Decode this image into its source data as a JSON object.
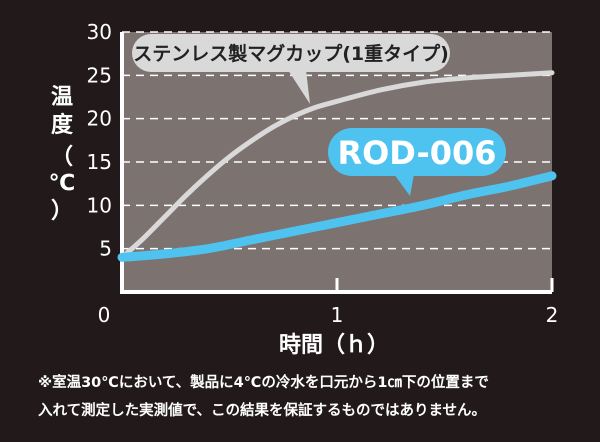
{
  "chart_data": {
    "type": "line",
    "ylabel_chars": [
      "温",
      "度",
      "（",
      "℃",
      "）"
    ],
    "xlabel": "時間（ｈ）",
    "ylim": [
      0,
      30
    ],
    "xlim": [
      0,
      2
    ],
    "y_ticks": [
      "0",
      "5",
      "10",
      "15",
      "20",
      "25",
      "30"
    ],
    "x_ticks": [
      "1",
      "2"
    ],
    "grid": true,
    "series": [
      {
        "name": "ステンレス製マグカップ(1重タイプ)",
        "color": "#d9d9d9",
        "x": [
          0,
          0.1,
          0.2,
          0.3,
          0.4,
          0.5,
          0.6,
          0.7,
          0.8,
          0.9,
          1.0,
          1.2,
          1.4,
          1.6,
          1.8,
          2.0
        ],
        "y": [
          4,
          6.2,
          8.7,
          11.2,
          13.5,
          15.6,
          17.4,
          19.0,
          20.3,
          21.3,
          22.0,
          23.3,
          24.2,
          24.7,
          25.0,
          25.3
        ]
      },
      {
        "name": "ROD-006",
        "color": "#4fc3f0",
        "x": [
          0,
          0.2,
          0.4,
          0.6,
          0.8,
          1.0,
          1.2,
          1.4,
          1.6,
          1.8,
          2.0
        ],
        "y": [
          4,
          4.4,
          5.0,
          6.0,
          7.0,
          8.0,
          9.0,
          10.0,
          11.2,
          12.2,
          13.4
        ]
      }
    ]
  },
  "colors": {
    "background": "#221a1a",
    "plot_area": "#7c7371",
    "grid": "#ffffff",
    "curve_stainless": "#d9d9d9",
    "curve_rod": "#4fc3f0"
  },
  "notes": [
    "※室温30℃において、製品に4℃の冷水を口元から1㎝下の位置まで",
    "入れて測定した実測値で、この結果を保証するものではありません。"
  ]
}
